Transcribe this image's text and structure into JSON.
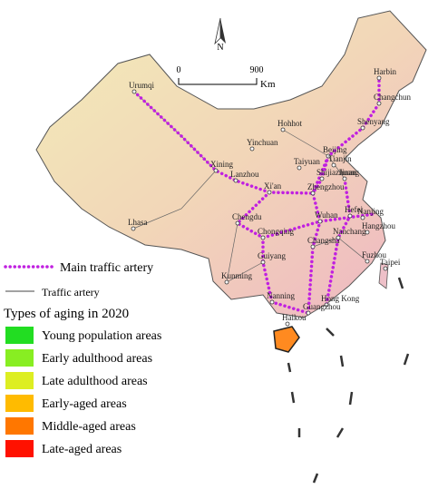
{
  "compass": "N",
  "scale_bar": {
    "ticks": [
      0,
      900
    ],
    "unit": "Km"
  },
  "cities": [
    "Urumqi",
    "Harbin",
    "Changchun",
    "Shenyang",
    "Hohhot",
    "Beijing",
    "Tianjin",
    "Yinchuan",
    "Taiyuan",
    "Shijiazhuang",
    "Jinan",
    "Xining",
    "Lanzhou",
    "Xi'an",
    "Zhengzhou",
    "Lhasa",
    "Chengdu",
    "Hefei",
    "Nanjing",
    "Wuhan",
    "Hangzhou",
    "Chongqing",
    "Changsha",
    "Nanchang",
    "Fuzhou",
    "Taipei",
    "Kunming",
    "Guiyang",
    "Nanning",
    "Hong Kong",
    "Guangzhou",
    "Haikou"
  ],
  "legend": {
    "main_traffic_artery": "Main traffic artery",
    "traffic_artery": "Traffic artery",
    "title": "Types of aging in 2020",
    "items": [
      {
        "label": "Young population areas",
        "color": "#22dd22"
      },
      {
        "label": "Early adulthood areas",
        "color": "#88ee22"
      },
      {
        "label": "Late adulthood areas",
        "color": "#ddee22"
      },
      {
        "label": "Early-aged areas",
        "color": "#ffbb00"
      },
      {
        "label": "Middle-aged areas",
        "color": "#ff7700"
      },
      {
        "label": "Late-aged areas",
        "color": "#ff1100"
      }
    ]
  }
}
